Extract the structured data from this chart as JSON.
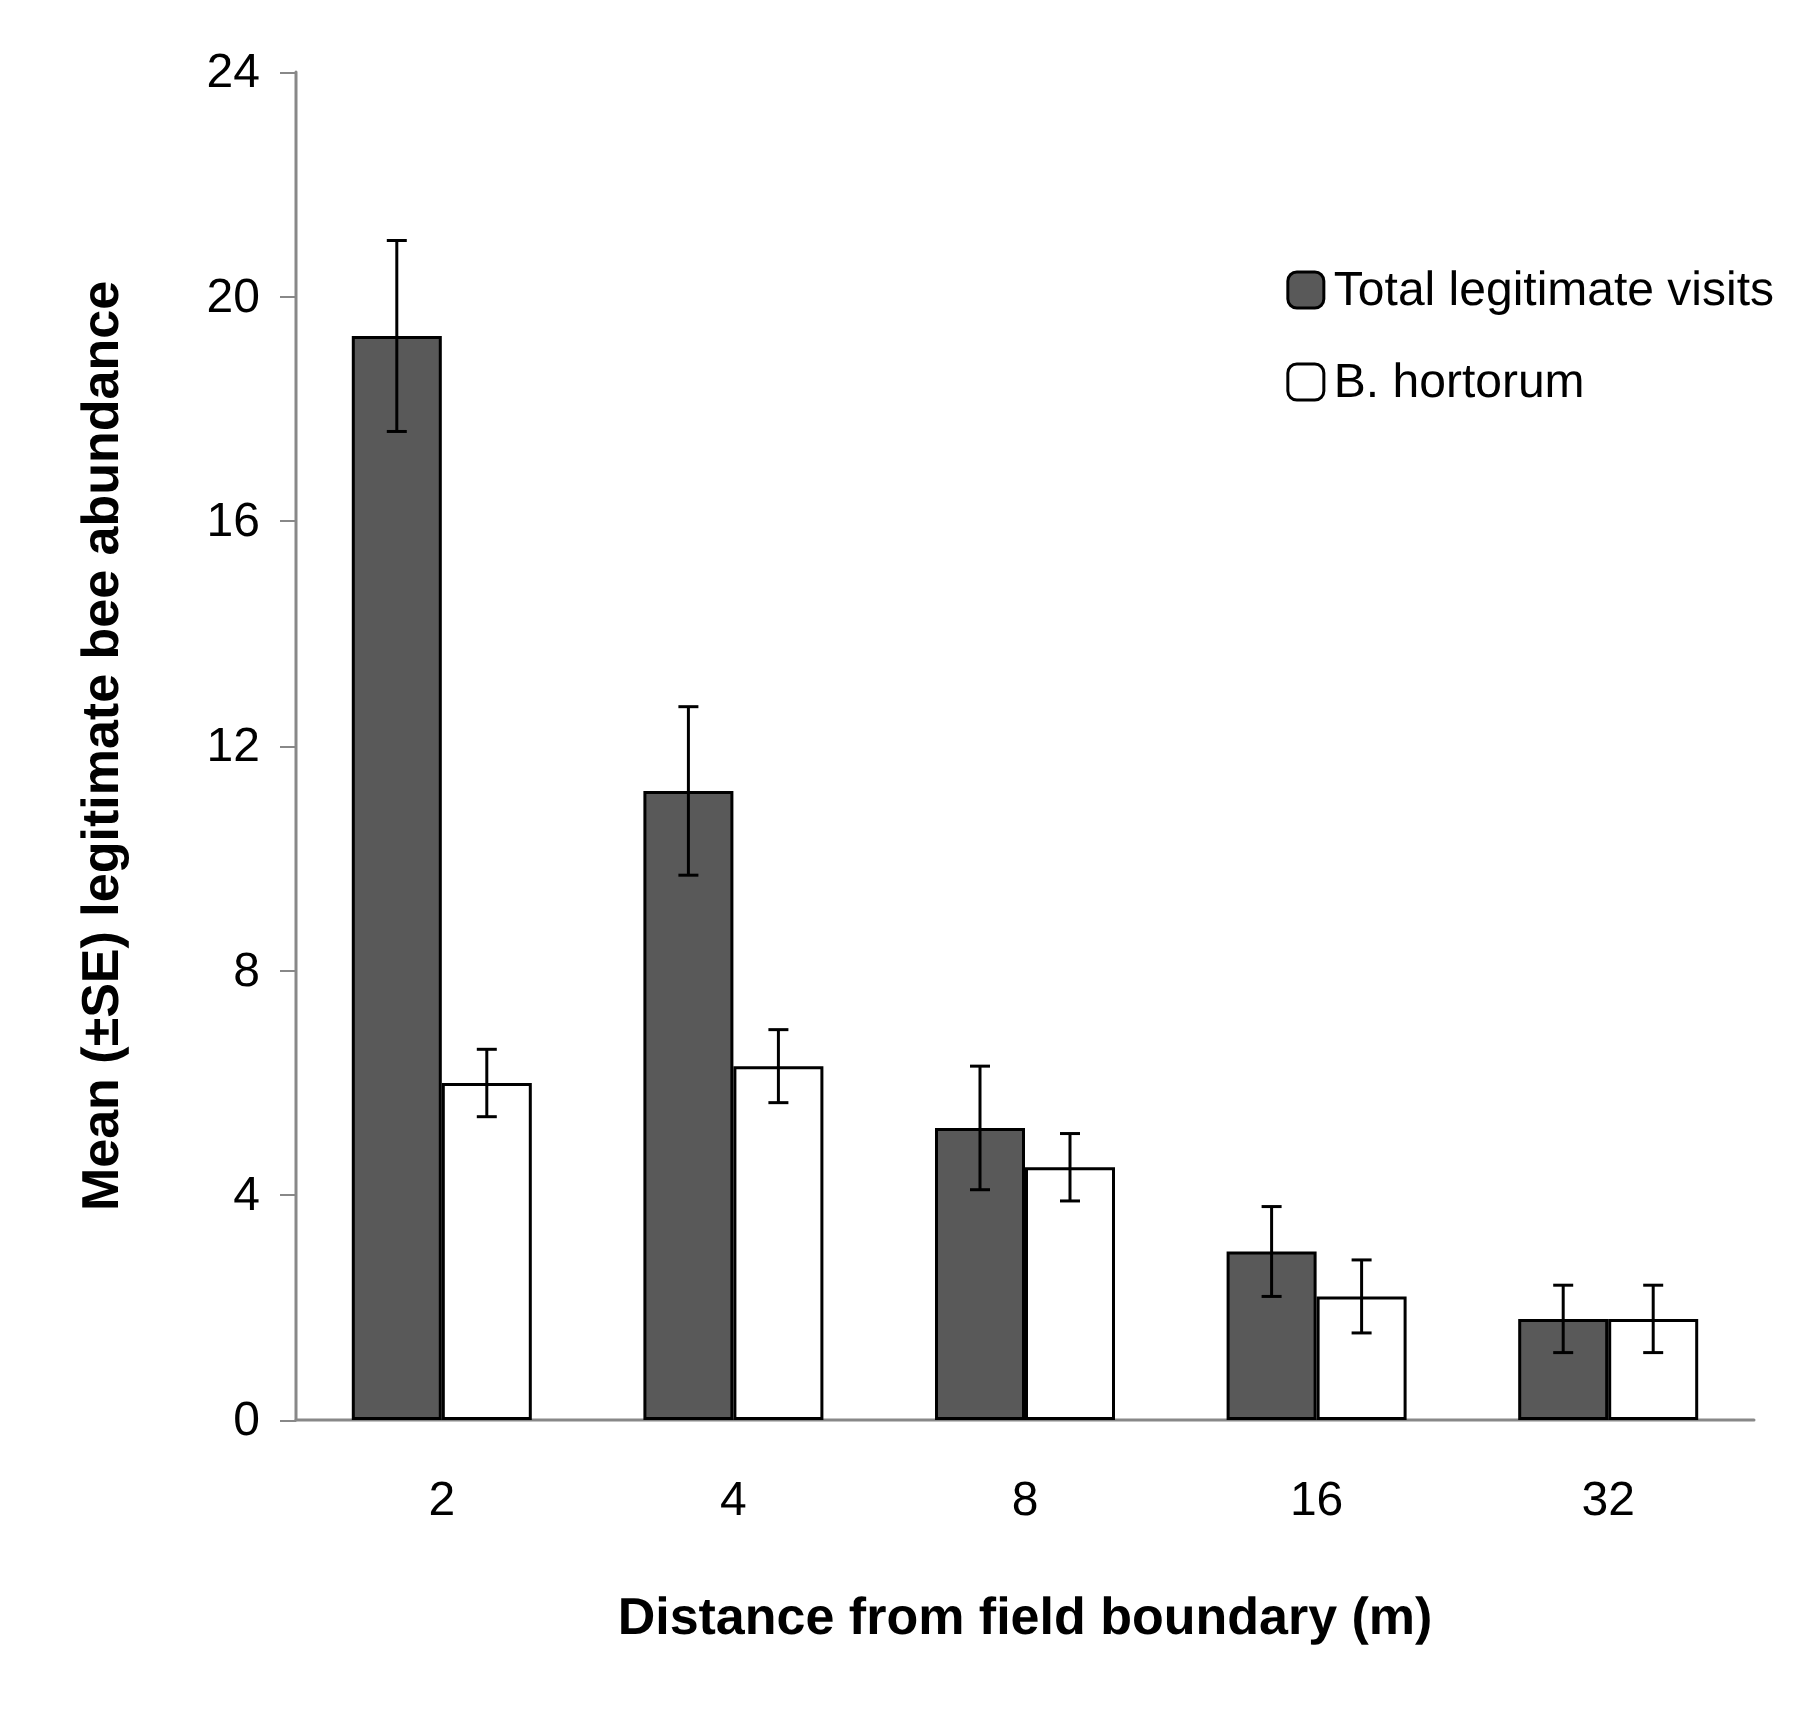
{
  "chart_data": {
    "type": "bar",
    "xlabel": "Distance from field boundary (m)",
    "ylabel": "Mean (±SE) legitimate bee abundance",
    "categories": [
      "2",
      "4",
      "8",
      "16",
      "32"
    ],
    "series": [
      {
        "name": "Total legitimate visits",
        "color": "#595959",
        "values": [
          19.3,
          11.2,
          5.2,
          3.0,
          1.8
        ],
        "errors": [
          1.7,
          1.5,
          1.1,
          0.8,
          0.6
        ]
      },
      {
        "name": "B. hortorum",
        "color": "#ffffff",
        "values": [
          6.0,
          6.3,
          4.5,
          2.2,
          1.8
        ],
        "errors": [
          0.6,
          0.65,
          0.6,
          0.65,
          0.6
        ]
      }
    ],
    "ylim": [
      0,
      24
    ],
    "yticks": [
      0,
      4,
      8,
      12,
      16,
      20,
      24
    ],
    "grid": false,
    "legend": "top right"
  }
}
